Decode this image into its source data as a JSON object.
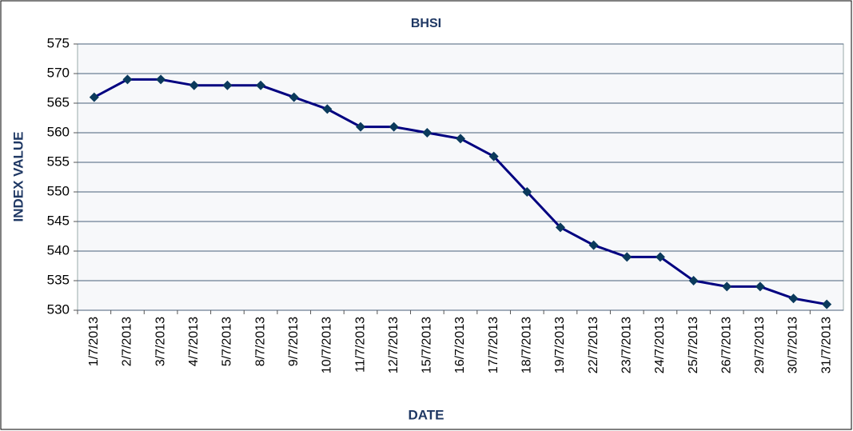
{
  "chart_data": {
    "type": "line",
    "title": "BHSI",
    "x_label": "DATE",
    "y_label": "INDEX VALUE",
    "categories": [
      "1/7/2013",
      "2/7/2013",
      "3/7/2013",
      "4/7/2013",
      "5/7/2013",
      "8/7/2013",
      "9/7/2013",
      "10/7/2013",
      "11/7/2013",
      "12/7/2013",
      "15/7/2013",
      "16/7/2013",
      "17/7/2013",
      "18/7/2013",
      "19/7/2013",
      "22/7/2013",
      "23/7/2013",
      "24/7/2013",
      "25/7/2013",
      "26/7/2013",
      "29/7/2013",
      "30/7/2013",
      "31/7/2013"
    ],
    "values": [
      566,
      569,
      569,
      568,
      568,
      568,
      566,
      564,
      561,
      561,
      560,
      559,
      556,
      550,
      544,
      541,
      539,
      539,
      535,
      534,
      534,
      532,
      531
    ],
    "color": "#000080",
    "marker_color": "#0b3a5c",
    "ylim": [
      530,
      575
    ],
    "yticks": [
      530,
      535,
      540,
      545,
      550,
      555,
      560,
      565,
      570,
      575
    ],
    "grid": true
  }
}
